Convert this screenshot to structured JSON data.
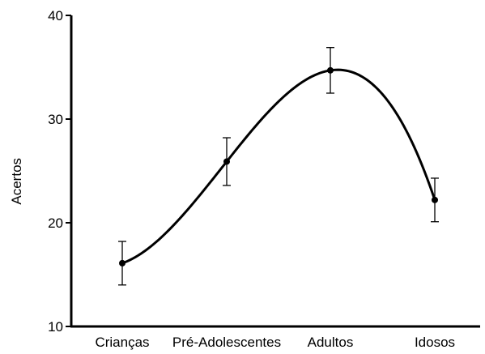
{
  "chart_data": {
    "type": "line",
    "title": "",
    "xlabel": "",
    "ylabel": "Acertos",
    "categories": [
      "Crianças",
      "Pré-Adolescentes",
      "Adultos",
      "Idosos"
    ],
    "ylim": [
      10,
      40
    ],
    "yticks": [
      10,
      20,
      30,
      40
    ],
    "grid": false,
    "legend": "none",
    "series": [
      {
        "values": [
          16.1,
          25.9,
          34.7,
          22.2
        ],
        "error_bars": [
          2.1,
          2.3,
          2.2,
          2.1
        ],
        "color": "#000000"
      }
    ]
  }
}
